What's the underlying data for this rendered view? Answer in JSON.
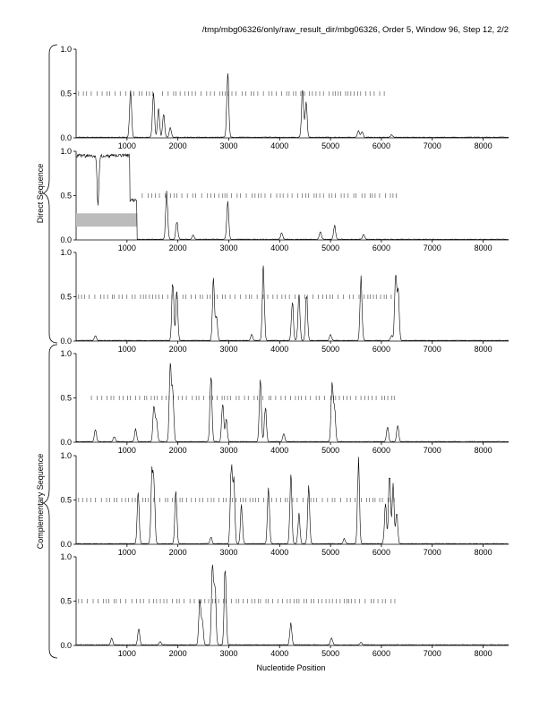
{
  "header": {
    "title": "/tmp/mbg06326/only/raw_result_dir/mbg06326, Order 5, Window 96, Step 12, 2/2"
  },
  "groups": [
    {
      "label": "Direct Sequence"
    },
    {
      "label": "Complementary Sequence"
    }
  ],
  "x_axis": {
    "label": "Nucleotide Position",
    "ticks": [
      "1000",
      "2000",
      "3000",
      "4000",
      "5000",
      "6000",
      "7000",
      "8000"
    ]
  },
  "y_axis": {
    "ticks": [
      "0.0",
      "0.5",
      "1.0"
    ]
  },
  "chart_data": [
    {
      "type": "line",
      "group": "Direct Sequence",
      "frame": 1,
      "xlim": [
        0,
        8500
      ],
      "ylim": [
        0,
        1
      ],
      "highlight": null,
      "marks": [
        [
          50,
          1600
        ],
        [
          1700,
          6100
        ]
      ],
      "peaks": [
        [
          1070,
          0.58
        ],
        [
          1520,
          0.55
        ],
        [
          1620,
          0.35
        ],
        [
          1720,
          0.28
        ],
        [
          1850,
          0.12
        ],
        [
          2980,
          0.78
        ],
        [
          4450,
          0.6
        ],
        [
          4520,
          0.42
        ],
        [
          5550,
          0.08
        ],
        [
          5620,
          0.07
        ],
        [
          6200,
          0.03
        ]
      ]
    },
    {
      "type": "line",
      "group": "Direct Sequence",
      "frame": 2,
      "xlim": [
        0,
        8500
      ],
      "ylim": [
        0,
        1
      ],
      "highlight": [
        0,
        1200
      ],
      "marks": [
        [
          1300,
          6300
        ]
      ],
      "peaks": [
        [
          1780,
          0.55
        ],
        [
          1980,
          0.22
        ],
        [
          2980,
          0.45
        ],
        [
          2300,
          0.05
        ],
        [
          4040,
          0.08
        ],
        [
          4800,
          0.09
        ],
        [
          5080,
          0.17
        ],
        [
          5650,
          0.06
        ]
      ]
    },
    {
      "type": "line",
      "group": "Direct Sequence",
      "frame": 3,
      "xlim": [
        0,
        8500
      ],
      "ylim": [
        0,
        1
      ],
      "highlight": null,
      "marks": [
        [
          50,
          6300
        ]
      ],
      "peaks": [
        [
          380,
          0.06
        ],
        [
          1900,
          0.72
        ],
        [
          1980,
          0.6
        ],
        [
          2700,
          0.74
        ],
        [
          2760,
          0.28
        ],
        [
          3450,
          0.07
        ],
        [
          3680,
          0.9
        ],
        [
          4250,
          0.48
        ],
        [
          4380,
          0.55
        ],
        [
          4530,
          0.54
        ],
        [
          5000,
          0.07
        ],
        [
          5600,
          0.74
        ],
        [
          6200,
          0.06
        ],
        [
          6280,
          0.82
        ],
        [
          6330,
          0.6
        ]
      ]
    },
    {
      "type": "line",
      "group": "Complementary Sequence",
      "frame": 1,
      "xlim": [
        0,
        8500
      ],
      "ylim": [
        0,
        1
      ],
      "highlight": null,
      "marks": [
        [
          300,
          6300
        ]
      ],
      "peaks": [
        [
          380,
          0.15
        ],
        [
          750,
          0.06
        ],
        [
          1170,
          0.15
        ],
        [
          1530,
          0.44
        ],
        [
          1580,
          0.25
        ],
        [
          1850,
          0.92
        ],
        [
          1900,
          0.62
        ],
        [
          2650,
          0.82
        ],
        [
          2880,
          0.48
        ],
        [
          2950,
          0.28
        ],
        [
          3620,
          0.76
        ],
        [
          3720,
          0.42
        ],
        [
          4080,
          0.1
        ],
        [
          5030,
          0.7
        ],
        [
          5080,
          0.4
        ],
        [
          6120,
          0.18
        ],
        [
          6320,
          0.2
        ]
      ]
    },
    {
      "type": "line",
      "group": "Complementary Sequence",
      "frame": 2,
      "xlim": [
        0,
        8500
      ],
      "ylim": [
        0,
        1
      ],
      "highlight": null,
      "marks": [
        [
          50,
          6300
        ]
      ],
      "peaks": [
        [
          1220,
          0.62
        ],
        [
          1490,
          0.78
        ],
        [
          1530,
          0.7
        ],
        [
          1960,
          0.68
        ],
        [
          2650,
          0.08
        ],
        [
          3050,
          0.95
        ],
        [
          3100,
          0.75
        ],
        [
          3250,
          0.45
        ],
        [
          3780,
          0.68
        ],
        [
          4220,
          0.82
        ],
        [
          4380,
          0.35
        ],
        [
          4570,
          0.68
        ],
        [
          5270,
          0.06
        ],
        [
          5550,
          0.98
        ],
        [
          6080,
          0.5
        ],
        [
          6160,
          0.85
        ],
        [
          6230,
          0.7
        ],
        [
          6300,
          0.38
        ]
      ]
    },
    {
      "type": "line",
      "group": "Complementary Sequence",
      "frame": 3,
      "xlim": [
        0,
        8500
      ],
      "ylim": [
        0,
        1
      ],
      "highlight": null,
      "marks": [
        [
          50,
          6300
        ]
      ],
      "peaks": [
        [
          700,
          0.08
        ],
        [
          1230,
          0.2
        ],
        [
          1650,
          0.04
        ],
        [
          2430,
          0.52
        ],
        [
          2480,
          0.3
        ],
        [
          2680,
          0.95
        ],
        [
          2730,
          0.72
        ],
        [
          2930,
          0.98
        ],
        [
          4220,
          0.27
        ],
        [
          5020,
          0.09
        ],
        [
          5600,
          0.03
        ]
      ]
    }
  ]
}
